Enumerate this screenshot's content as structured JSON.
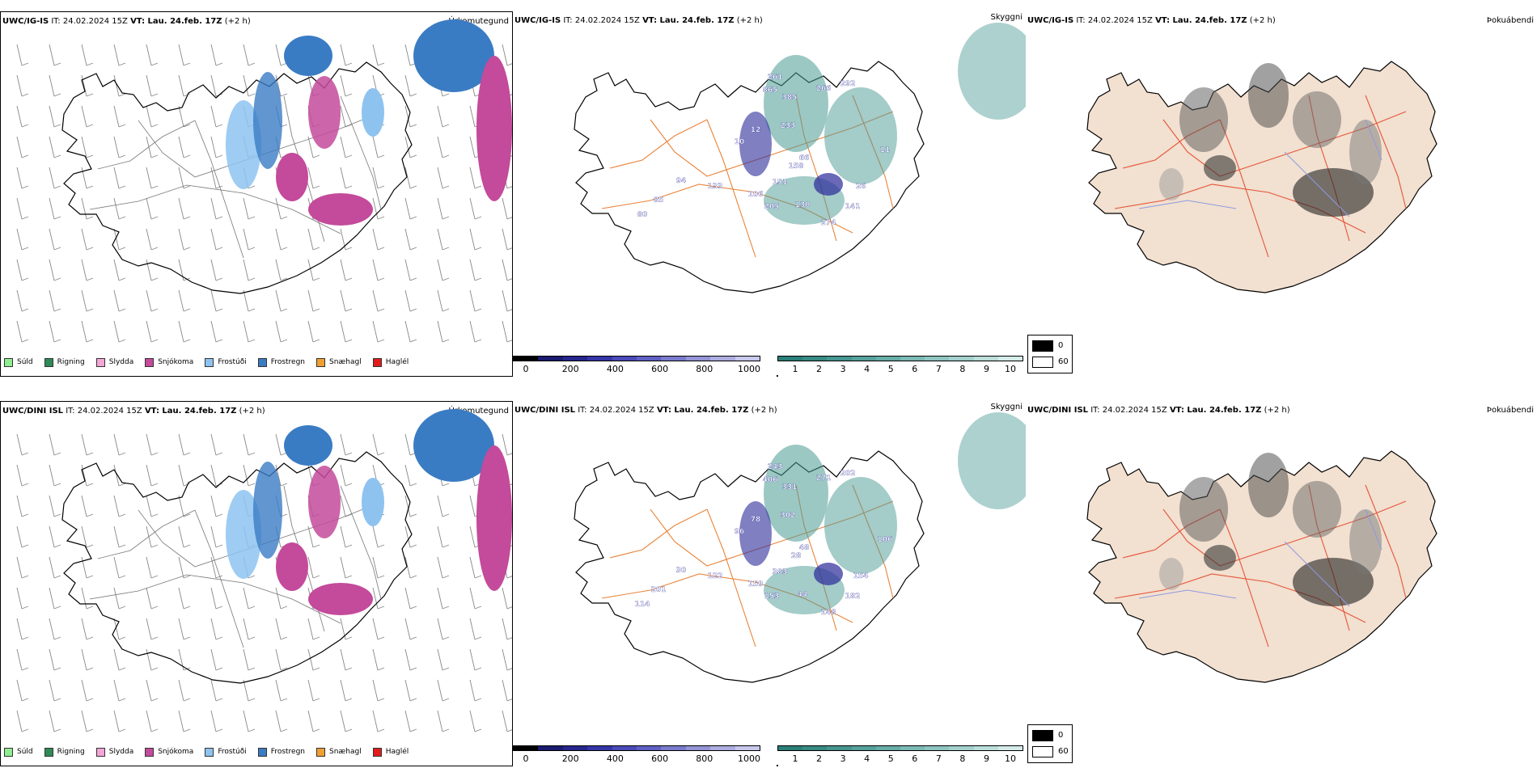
{
  "rows": [
    {
      "model_label": "UWC/IG-IS",
      "it_text": "IT: 24.02.2024 15Z",
      "vt_label": "VT: Lau. 24.feb. 17Z",
      "offset_text": "(+2 h)",
      "precip_panel_name": "Úrkomutegund",
      "vis_panel_name": "Skyggni",
      "fog_panel_name": "Þokuábendi",
      "vis_values": [
        "261",
        "865",
        "385",
        "266",
        "292",
        "233",
        "66",
        "158",
        "151",
        "106",
        "205",
        "130",
        "274",
        "141",
        "26",
        "94",
        "133",
        "85",
        "80",
        "10",
        "12",
        "11"
      ]
    },
    {
      "model_label": "UWC/DINI ISL",
      "it_text": "IT: 24.02.2024 15Z",
      "vt_label": "VT: Lau. 24.feb. 17Z",
      "offset_text": "(+2 h)",
      "precip_panel_name": "Úrkomutegund",
      "vis_panel_name": "Skyggni",
      "fog_panel_name": "Þokuábendi",
      "vis_values": [
        "243",
        "406",
        "331",
        "271",
        "202",
        "302",
        "48",
        "28",
        "383",
        "159",
        "153",
        "44",
        "148",
        "182",
        "154",
        "30",
        "122",
        "201",
        "114",
        "96",
        "78",
        "106"
      ]
    }
  ],
  "precip_legend": [
    {
      "label": "Súld",
      "color": "#90ee90"
    },
    {
      "label": "Rigning",
      "color": "#2e8b57"
    },
    {
      "label": "Slydda",
      "color": "#f4a6d7"
    },
    {
      "label": "Snjókoma",
      "color": "#c44a9b"
    },
    {
      "label": "Frostúði",
      "color": "#8ec3f0"
    },
    {
      "label": "Frostregn",
      "color": "#3a7cc4"
    },
    {
      "label": "Snæhagl",
      "color": "#f0a030"
    },
    {
      "label": "Haglél",
      "color": "#e21b1b"
    }
  ],
  "ceiling_scale": {
    "unit": "m",
    "ticks": [
      "0",
      "200",
      "400",
      "600",
      "800",
      "1000"
    ],
    "colors": [
      "#000000",
      "#1a1a6e",
      "#26268c",
      "#3535a8",
      "#4a4ab8",
      "#6060c4",
      "#7a7acc",
      "#9494d6",
      "#adade0",
      "#c8c8ec"
    ]
  },
  "visibility_scale": {
    "unit": "km",
    "ticks": [
      "1",
      "2",
      "3",
      "4",
      "5",
      "6",
      "7",
      "8",
      "9",
      "10"
    ],
    "colors": [
      "#2a7f78",
      "#378a83",
      "#469590",
      "#56a19b",
      "#68ada7",
      "#7bb9b4",
      "#8fc5c0",
      "#a4d1cd",
      "#bbdeda",
      "#d4ebe8"
    ]
  },
  "fog_scale": {
    "labels": [
      "0",
      "60"
    ],
    "colors": [
      "#000000",
      "#ffffff"
    ]
  },
  "colors": {
    "coast": "#000000",
    "roads_precip": "#777777",
    "roads_vis": "#e8843a",
    "roads_fog": "#e4553a",
    "land_fog": "#f2e0d0",
    "rivers_fog": "#8c9ae0",
    "snow": "#c44a9b",
    "frost_rain": "#3a7cc4",
    "frost_drizzle": "#8ec3f0",
    "vis_teal": "#4a9a93",
    "ceiling_blue": "#2a2a9a"
  }
}
